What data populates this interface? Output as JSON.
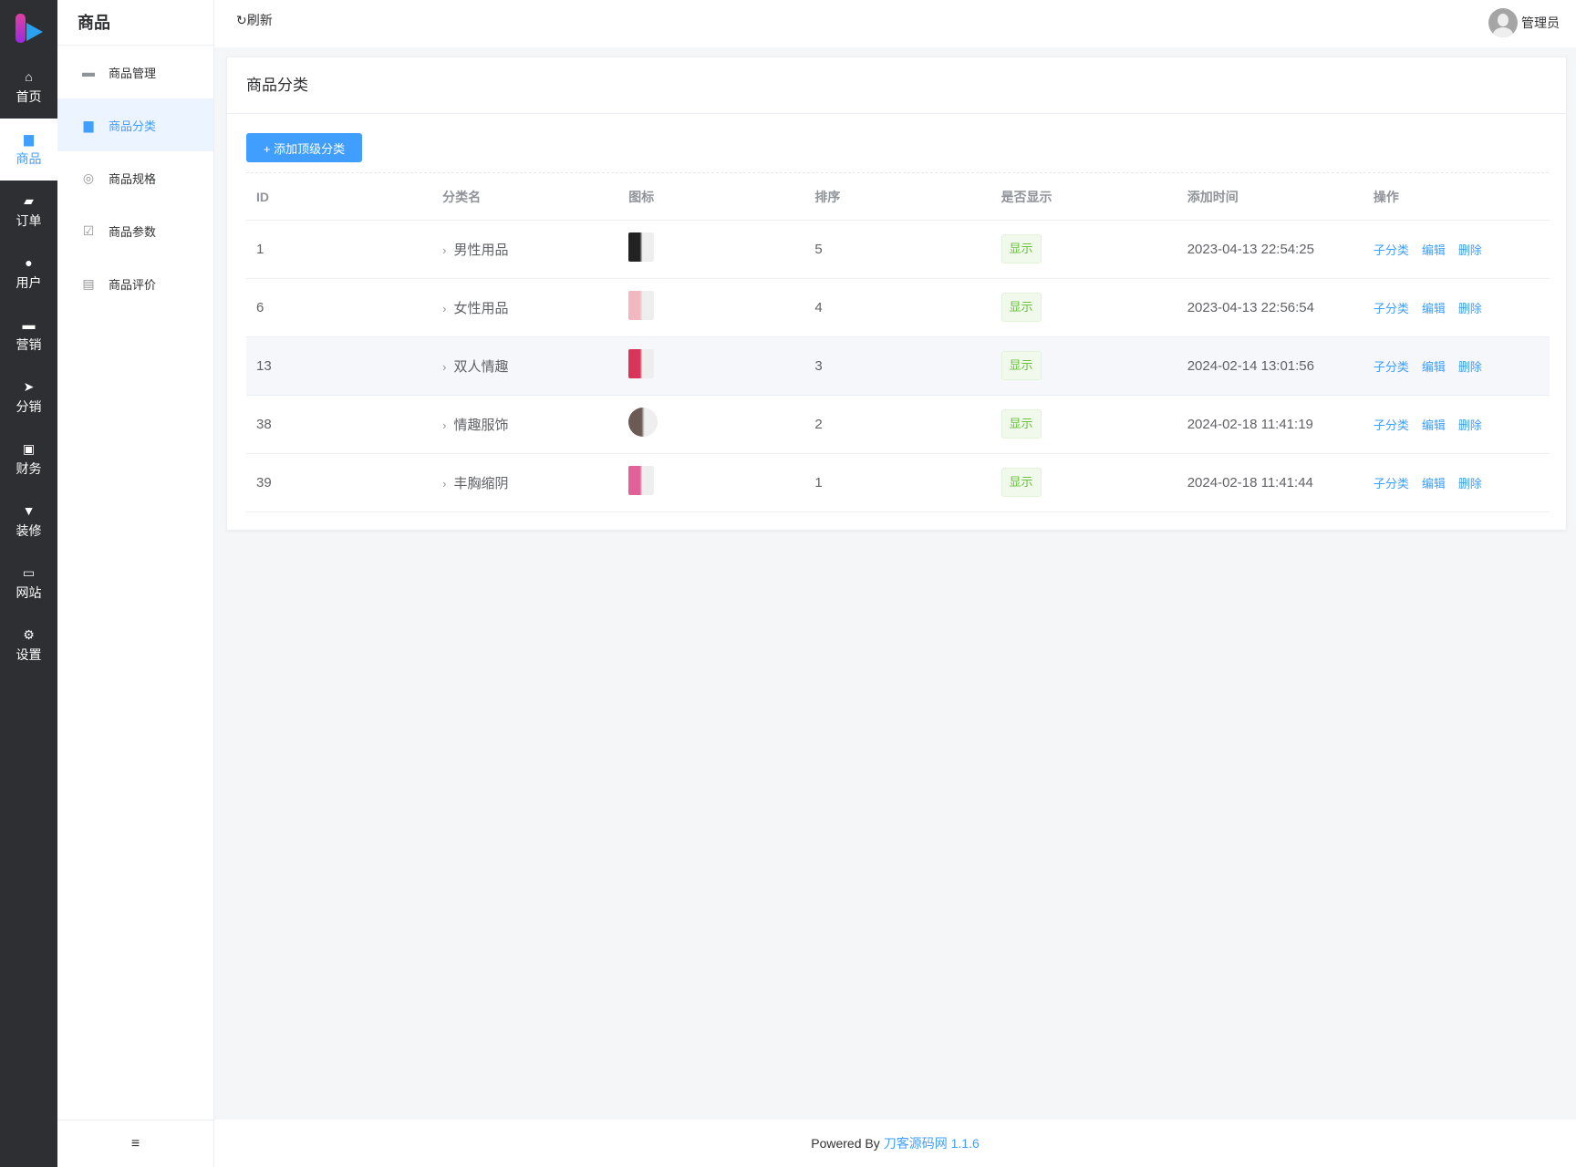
{
  "rail": {
    "items": [
      {
        "label": "首页",
        "icon": "home-icon",
        "glyph": "⌂"
      },
      {
        "label": "商品",
        "icon": "shopping-bag-icon",
        "glyph": "▆",
        "active": true
      },
      {
        "label": "订单",
        "icon": "wallet-icon",
        "glyph": "▰"
      },
      {
        "label": "用户",
        "icon": "user-icon",
        "glyph": "●"
      },
      {
        "label": "营销",
        "icon": "ticket-icon",
        "glyph": "▬"
      },
      {
        "label": "分销",
        "icon": "paper-plane-icon",
        "glyph": "➤"
      },
      {
        "label": "财务",
        "icon": "money-icon",
        "glyph": "▣"
      },
      {
        "label": "装修",
        "icon": "brush-icon",
        "glyph": "▼"
      },
      {
        "label": "网站",
        "icon": "monitor-icon",
        "glyph": "▭"
      },
      {
        "label": "设置",
        "icon": "gear-icon",
        "glyph": "⚙"
      }
    ]
  },
  "submenu": {
    "title": "商品",
    "items": [
      {
        "label": "商品管理",
        "icon": "briefcase-icon",
        "glyph": "▬"
      },
      {
        "label": "商品分类",
        "icon": "shopping-bag-icon",
        "glyph": "▆",
        "active": true
      },
      {
        "label": "商品规格",
        "icon": "lifebuoy-icon",
        "glyph": "◎"
      },
      {
        "label": "商品参数",
        "icon": "clipboard-check-icon",
        "glyph": "☑"
      },
      {
        "label": "商品评价",
        "icon": "comment-icon",
        "glyph": "▤"
      }
    ],
    "collapse_glyph": "≡"
  },
  "header": {
    "refresh": "↻刷新",
    "user": "管理员"
  },
  "card": {
    "title": "商品分类",
    "add_button": "+ 添加顶级分类"
  },
  "table": {
    "columns": [
      "ID",
      "分类名",
      "图标",
      "排序",
      "是否显示",
      "添加时间",
      "操作"
    ],
    "rows": [
      {
        "id": "1",
        "name": "男性用品",
        "sort": "5",
        "show": "显示",
        "time": "2023-04-13 22:54:25",
        "thumb": "#222222"
      },
      {
        "id": "6",
        "name": "女性用品",
        "sort": "4",
        "show": "显示",
        "time": "2023-04-13 22:56:54",
        "thumb": "#f2b8c0"
      },
      {
        "id": "13",
        "name": "双人情趣",
        "sort": "3",
        "show": "显示",
        "time": "2024-02-14 13:01:56",
        "thumb": "#d9345a"
      },
      {
        "id": "38",
        "name": "情趣服饰",
        "sort": "2",
        "show": "显示",
        "time": "2024-02-18 11:41:19",
        "thumb": "#6b5a55"
      },
      {
        "id": "39",
        "name": "丰胸缩阴",
        "sort": "1",
        "show": "显示",
        "time": "2024-02-18 11:41:44",
        "thumb": "#e0609a"
      }
    ],
    "actions": [
      "子分类",
      "编辑",
      "删除"
    ]
  },
  "footer": {
    "prefix": "Powered By",
    "link": "刀客源码网 1.1.6"
  },
  "colors": {
    "primary": "#409eff",
    "rail_bg": "#2e2f32",
    "success": "#67c23a"
  }
}
